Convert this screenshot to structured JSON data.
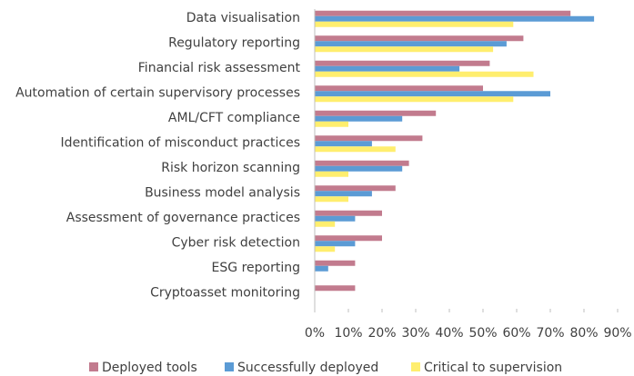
{
  "chart_data": {
    "type": "hbar",
    "categories": [
      "Data visualisation",
      "Regulatory reporting",
      "Financial risk assessment",
      "Automation of certain supervisory processes",
      "AML/CFT compliance",
      "Identification of misconduct practices",
      "Risk horizon scanning",
      "Business model analysis",
      "Assessment of governance practices",
      "Cyber risk detection",
      "ESG reporting",
      "Cryptoasset monitoring"
    ],
    "series": [
      {
        "name": "Deployed tools",
        "color": "#c27b8e",
        "values": [
          76,
          62,
          52,
          50,
          36,
          32,
          28,
          24,
          20,
          20,
          12,
          12
        ]
      },
      {
        "name": "Successfully deployed",
        "color": "#5b9bd5",
        "values": [
          83,
          57,
          43,
          70,
          26,
          17,
          26,
          17,
          12,
          12,
          4,
          0
        ]
      },
      {
        "name": "Critical to supervision",
        "color": "#ffee6e",
        "values": [
          59,
          53,
          65,
          59,
          10,
          24,
          10,
          10,
          6,
          6,
          0,
          0
        ]
      }
    ],
    "xlim": [
      0,
      90
    ],
    "xticks": [
      {
        "value": 0,
        "label": "0%"
      },
      {
        "value": 10,
        "label": "10%"
      },
      {
        "value": 20,
        "label": "20%"
      },
      {
        "value": 30,
        "label": "30%"
      },
      {
        "value": 40,
        "label": "40%"
      },
      {
        "value": 50,
        "label": "50%"
      },
      {
        "value": 60,
        "label": "60%"
      },
      {
        "value": 70,
        "label": "70%"
      },
      {
        "value": 80,
        "label": "80%"
      },
      {
        "value": 90,
        "label": "90%"
      }
    ],
    "legend": "bottom"
  }
}
